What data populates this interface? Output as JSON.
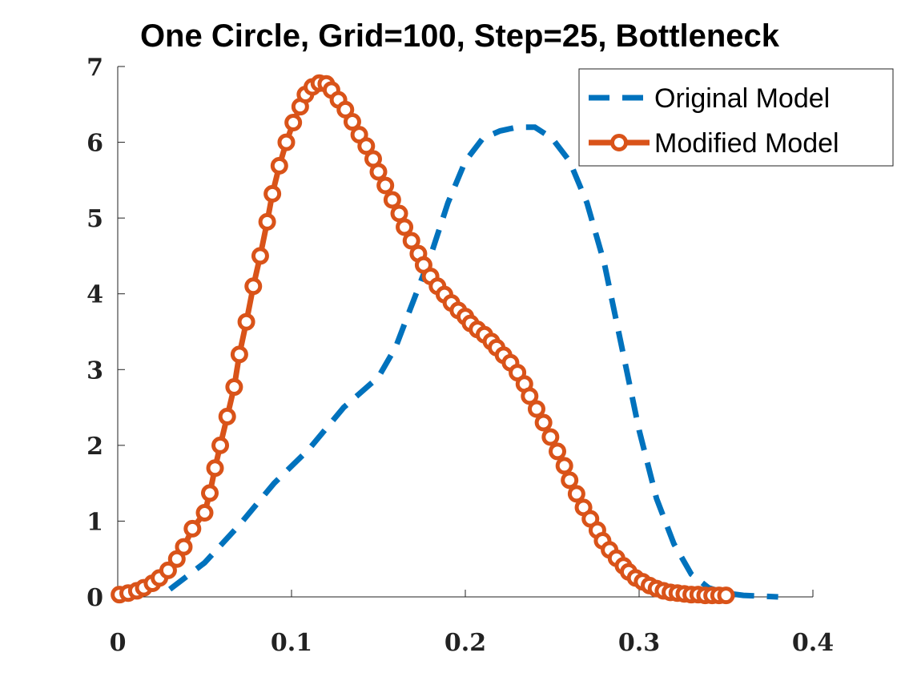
{
  "chart_data": {
    "type": "line",
    "title": "One Circle, Grid=100, Step=25, Bottleneck",
    "xlim": [
      0,
      0.4
    ],
    "xticks": [
      0,
      0.1,
      0.2,
      0.3,
      0.4
    ],
    "ylim": [
      0,
      7
    ],
    "yticks": [
      0,
      1,
      2,
      3,
      4,
      5,
      6,
      7
    ],
    "legend": "upper right",
    "series": [
      {
        "name": "Original Model",
        "color": "#0072bd",
        "line_style": "dashed",
        "marker": "none",
        "x": [
          0.03,
          0.05,
          0.07,
          0.09,
          0.11,
          0.13,
          0.15,
          0.16,
          0.17,
          0.18,
          0.19,
          0.2,
          0.21,
          0.22,
          0.23,
          0.24,
          0.25,
          0.26,
          0.27,
          0.28,
          0.29,
          0.3,
          0.31,
          0.32,
          0.33,
          0.34,
          0.35,
          0.36,
          0.38
        ],
        "values": [
          0.1,
          0.45,
          0.95,
          1.5,
          1.95,
          2.5,
          2.9,
          3.3,
          3.9,
          4.5,
          5.2,
          5.75,
          6.05,
          6.15,
          6.2,
          6.2,
          6.05,
          5.75,
          5.2,
          4.4,
          3.3,
          2.2,
          1.3,
          0.7,
          0.3,
          0.12,
          0.05,
          0.02,
          0
        ]
      },
      {
        "name": "Modified Model",
        "color": "#d95319",
        "line_style": "solid",
        "marker": "circle",
        "x": [
          0.001,
          0.006,
          0.011,
          0.015,
          0.02,
          0.024,
          0.029,
          0.034,
          0.038,
          0.043,
          0.05,
          0.053,
          0.056,
          0.059,
          0.063,
          0.067,
          0.07,
          0.074,
          0.078,
          0.082,
          0.086,
          0.089,
          0.093,
          0.097,
          0.101,
          0.105,
          0.108,
          0.112,
          0.116,
          0.12,
          0.123,
          0.127,
          0.131,
          0.135,
          0.139,
          0.143,
          0.147,
          0.15,
          0.154,
          0.158,
          0.162,
          0.165,
          0.169,
          0.173,
          0.176,
          0.18,
          0.184,
          0.188,
          0.192,
          0.196,
          0.2,
          0.203,
          0.207,
          0.211,
          0.215,
          0.218,
          0.222,
          0.226,
          0.23,
          0.234,
          0.237,
          0.241,
          0.245,
          0.249,
          0.253,
          0.257,
          0.26,
          0.264,
          0.268,
          0.272,
          0.276,
          0.279,
          0.283,
          0.287,
          0.291,
          0.294,
          0.298,
          0.302,
          0.306,
          0.31,
          0.314,
          0.318,
          0.322,
          0.326,
          0.33,
          0.334,
          0.338,
          0.342,
          0.346,
          0.35
        ],
        "values": [
          0.03,
          0.05,
          0.08,
          0.12,
          0.18,
          0.25,
          0.35,
          0.5,
          0.66,
          0.9,
          1.11,
          1.37,
          1.7,
          2.0,
          2.38,
          2.77,
          3.2,
          3.63,
          4.1,
          4.5,
          4.95,
          5.32,
          5.69,
          6.0,
          6.26,
          6.47,
          6.63,
          6.73,
          6.78,
          6.77,
          6.69,
          6.56,
          6.43,
          6.27,
          6.1,
          5.95,
          5.78,
          5.61,
          5.43,
          5.24,
          5.06,
          4.88,
          4.7,
          4.53,
          4.38,
          4.23,
          4.1,
          3.99,
          3.88,
          3.78,
          3.7,
          3.61,
          3.53,
          3.46,
          3.37,
          3.29,
          3.19,
          3.09,
          2.96,
          2.81,
          2.65,
          2.48,
          2.3,
          2.11,
          1.92,
          1.73,
          1.54,
          1.36,
          1.18,
          1.03,
          0.88,
          0.74,
          0.62,
          0.51,
          0.41,
          0.33,
          0.25,
          0.2,
          0.15,
          0.11,
          0.08,
          0.06,
          0.05,
          0.04,
          0.03,
          0.03,
          0.02,
          0.02,
          0.02,
          0.02
        ]
      }
    ]
  }
}
